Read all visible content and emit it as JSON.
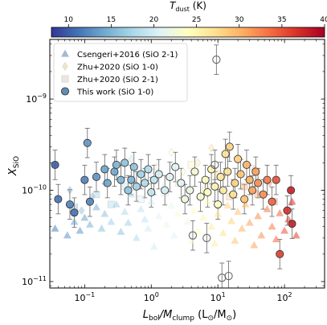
{
  "chart_data": {
    "type": "scatter",
    "xlabel_main": "L",
    "xlabel_sub1": "bol",
    "xlabel_mid": "/M",
    "xlabel_sub2": "clump",
    "xlabel_units": " (L",
    "xlabel_units_sub1": "⊙",
    "xlabel_units_mid": "/M",
    "xlabel_units_sub2": "⊙",
    "xlabel_units_end": ")",
    "ylabel_main": "X",
    "ylabel_sub": "SiO",
    "xscale": "log",
    "yscale": "log",
    "xlim": [
      0.03,
      400
    ],
    "ylim": [
      8.5e-12,
      4.5e-09
    ],
    "x_ticks": [
      {
        "v": 0.1,
        "m": "10",
        "e": "−1"
      },
      {
        "v": 1,
        "m": "10",
        "e": "0"
      },
      {
        "v": 10,
        "m": "10",
        "e": "1"
      },
      {
        "v": 100,
        "m": "10",
        "e": "2"
      }
    ],
    "y_ticks": [
      {
        "v": 1e-11,
        "m": "10",
        "e": "−11"
      },
      {
        "v": 1e-10,
        "m": "10",
        "e": "−10"
      },
      {
        "v": 1e-09,
        "m": "10",
        "e": "−9"
      }
    ],
    "colorbar": {
      "label_main": "T",
      "label_sub": "dust",
      "label_units": " (K)",
      "range": [
        8,
        40
      ],
      "ticks": [
        {
          "v": 10,
          "label": "10"
        },
        {
          "v": 15,
          "label": "15"
        },
        {
          "v": 20,
          "label": "20"
        },
        {
          "v": 25,
          "label": "25"
        },
        {
          "v": 30,
          "label": "30"
        },
        {
          "v": 35,
          "label": "35"
        },
        {
          "v": 40,
          "label": "40"
        }
      ],
      "colormap": "RdYlBu_r",
      "colors": [
        "#313695",
        "#4575b4",
        "#74add1",
        "#abd9e9",
        "#e0f3f8",
        "#ffffbf",
        "#fee090",
        "#fdae61",
        "#f46d43",
        "#d73027",
        "#a50026"
      ]
    },
    "legend": {
      "placement": "top-left",
      "entries": [
        {
          "label": "Csengeri+2016 (SiO 2-1)",
          "marker": "triangle"
        },
        {
          "label": "Zhu+2020 (SiO 1-0)",
          "marker": "diamond"
        },
        {
          "label": "Zhu+2020 (SiO 2-1)",
          "marker": "square"
        },
        {
          "label": "This work (SiO 1-0)",
          "marker": "circle"
        }
      ]
    },
    "series": [
      {
        "name": "Csengeri+2016 (SiO 2-1)",
        "marker": "triangle",
        "points": [
          [
            0.036,
            3.8e-11,
            12
          ],
          [
            0.055,
            3.2e-11,
            13
          ],
          [
            0.07,
            4.5e-11,
            14
          ],
          [
            0.085,
            3.6e-11,
            13
          ],
          [
            0.1,
            5e-11,
            14
          ],
          [
            0.12,
            4.2e-11,
            15
          ],
          [
            0.15,
            6.5e-11,
            15
          ],
          [
            0.18,
            3.8e-11,
            16
          ],
          [
            0.2,
            5.5e-11,
            16
          ],
          [
            0.25,
            4.5e-11,
            17
          ],
          [
            0.3,
            7e-11,
            17
          ],
          [
            0.35,
            3.5e-11,
            16
          ],
          [
            0.4,
            5.8e-11,
            18
          ],
          [
            0.45,
            4.4e-11,
            17
          ],
          [
            0.5,
            9e-11,
            18
          ],
          [
            0.6,
            3e-11,
            18
          ],
          [
            0.7,
            6.2e-11,
            19
          ],
          [
            0.8,
            4.8e-11,
            19
          ],
          [
            0.9,
            3.8e-11,
            20
          ],
          [
            1.0,
            7.5e-11,
            20
          ],
          [
            1.1,
            2.4e-11,
            20
          ],
          [
            1.3,
            5.2e-11,
            21
          ],
          [
            1.5,
            1.1e-10,
            21
          ],
          [
            1.7,
            4.2e-11,
            22
          ],
          [
            2.0,
            6.8e-11,
            22
          ],
          [
            2.2,
            3.2e-11,
            21
          ],
          [
            2.5,
            5.5e-11,
            23
          ],
          [
            3.0,
            8.5e-11,
            23
          ],
          [
            3.5,
            4.5e-11,
            22
          ],
          [
            4.0,
            2.8e-11,
            23
          ],
          [
            4.5,
            6e-11,
            24
          ],
          [
            5.0,
            3.6e-11,
            24
          ],
          [
            6.0,
            5e-11,
            25
          ],
          [
            7.0,
            7.5e-11,
            25
          ],
          [
            8.0,
            4e-11,
            26
          ],
          [
            9.0,
            2.6e-11,
            26
          ],
          [
            10.0,
            5.5e-11,
            27
          ],
          [
            12.0,
            3.4e-11,
            27
          ],
          [
            14.0,
            6.8e-11,
            28
          ],
          [
            16.0,
            4.6e-11,
            28
          ],
          [
            18.0,
            2.8e-11,
            29
          ],
          [
            20.0,
            5.8e-11,
            29
          ],
          [
            23.0,
            3.8e-11,
            30
          ],
          [
            26.0,
            7e-11,
            30
          ],
          [
            30.0,
            4.4e-11,
            31
          ],
          [
            35.0,
            2.5e-11,
            31
          ],
          [
            40.0,
            5.2e-11,
            32
          ],
          [
            45.0,
            3.2e-11,
            32
          ],
          [
            55.0,
            6.2e-11,
            33
          ],
          [
            65.0,
            4e-11,
            33
          ],
          [
            75.0,
            2.9e-11,
            34
          ],
          [
            85.0,
            5.6e-11,
            34
          ],
          [
            100.0,
            3.6e-11,
            35
          ],
          [
            115.0,
            4.8e-11,
            36
          ],
          [
            130.0,
            7.5e-11,
            37
          ],
          [
            150.0,
            3.2e-11,
            36
          ]
        ]
      },
      {
        "name": "Zhu+2020 (SiO 1-0)",
        "marker": "diamond",
        "points": [
          [
            0.06,
            1e-10,
            14
          ],
          [
            0.09,
            6e-11,
            15
          ],
          [
            0.13,
            8.5e-11,
            15
          ],
          [
            0.2,
            1.2e-10,
            17
          ],
          [
            0.3,
            1.5e-10,
            18
          ],
          [
            0.5,
            2.2e-10,
            19
          ],
          [
            0.8,
            1.3e-10,
            21
          ],
          [
            1.2,
            1.8e-10,
            22
          ],
          [
            2.0,
            2.6e-10,
            23
          ],
          [
            3.0,
            1.6e-10,
            24
          ],
          [
            5.0,
            2e-10,
            26
          ],
          [
            8.0,
            2.9e-10,
            27
          ],
          [
            12.0,
            1.4e-10,
            29
          ],
          [
            20.0,
            2.3e-10,
            30
          ],
          [
            35.0,
            1.7e-10,
            32
          ],
          [
            60.0,
            1.2e-10,
            33
          ]
        ]
      },
      {
        "name": "Zhu+2020 (SiO 2-1)",
        "marker": "square",
        "points": [
          [
            0.07,
            6.5e-11,
            14
          ],
          [
            0.15,
            9e-11,
            16
          ],
          [
            0.25,
            7e-11,
            17
          ],
          [
            0.4,
            1.1e-10,
            18
          ],
          [
            0.7,
            8e-11,
            20
          ],
          [
            1.0,
            1.4e-10,
            21
          ],
          [
            1.6,
            9.5e-11,
            22
          ],
          [
            2.6,
            1.2e-10,
            23
          ],
          [
            4.0,
            1.9e-10,
            25
          ],
          [
            6.5,
            1e-10,
            26
          ],
          [
            10.0,
            1.5e-10,
            28
          ],
          [
            15.0,
            8.5e-11,
            29
          ],
          [
            25.0,
            1.1e-10,
            31
          ],
          [
            40.0,
            9e-11,
            32
          ],
          [
            70.0,
            7.5e-11,
            34
          ]
        ]
      },
      {
        "name": "This work (SiO 1-0)",
        "marker": "circle",
        "points": [
          [
            0.036,
            1.9e-10,
            10,
            0
          ],
          [
            0.04,
            8e-11,
            11,
            0
          ],
          [
            0.06,
            7e-11,
            12,
            0
          ],
          [
            0.07,
            5.7e-11,
            11,
            0
          ],
          [
            0.1,
            1.3e-10,
            12,
            0
          ],
          [
            0.11,
            3.3e-10,
            13,
            0
          ],
          [
            0.12,
            7.5e-11,
            12,
            0
          ],
          [
            0.15,
            1.4e-10,
            13,
            0
          ],
          [
            0.2,
            1.7e-10,
            14,
            0
          ],
          [
            0.22,
            1.2e-10,
            14,
            0
          ],
          [
            0.28,
            1.6e-10,
            14,
            0
          ],
          [
            0.3,
            1.9e-10,
            15,
            0
          ],
          [
            0.35,
            1.3e-10,
            15,
            0
          ],
          [
            0.4,
            2e-10,
            16,
            0
          ],
          [
            0.45,
            1e-10,
            16,
            0
          ],
          [
            0.5,
            1.3e-10,
            15,
            0
          ],
          [
            0.55,
            1.8e-10,
            16,
            0
          ],
          [
            0.6,
            1.1e-10,
            17,
            0
          ],
          [
            0.7,
            1.5e-10,
            17,
            0
          ],
          [
            0.8,
            1.2e-10,
            18,
            0
          ],
          [
            0.9,
            1.7e-10,
            18,
            0
          ],
          [
            1.0,
            9.5e-11,
            19,
            0
          ],
          [
            1.1,
            1.3e-10,
            19,
            0
          ],
          [
            1.3,
            1.5e-10,
            20,
            0
          ],
          [
            1.6,
            1e-10,
            20,
            0
          ],
          [
            1.9,
            1.4e-10,
            21,
            0
          ],
          [
            2.3,
            1.8e-10,
            21,
            0
          ],
          [
            2.8,
            1.2e-10,
            21,
            0
          ],
          [
            3.2,
            8e-11,
            22,
            0
          ],
          [
            3.8,
            1e-10,
            22,
            0
          ],
          [
            4.5,
            1.6e-10,
            23,
            0
          ],
          [
            5.5,
            8.5e-11,
            23,
            0
          ],
          [
            6.5,
            1.3e-10,
            24,
            0
          ],
          [
            7.0,
            9.5e-11,
            24,
            0
          ],
          [
            8.0,
            1.7e-10,
            25,
            0
          ],
          [
            9.0,
            1.1e-10,
            25,
            0
          ],
          [
            9.5,
            2.7e-09,
            22,
            1
          ],
          [
            10.0,
            7e-11,
            24,
            0
          ],
          [
            11.0,
            1.4e-10,
            26,
            0
          ],
          [
            12.0,
            1e-10,
            26,
            0
          ],
          [
            13.0,
            2.5e-10,
            27,
            0
          ],
          [
            14.0,
            1.6e-10,
            27,
            0
          ],
          [
            15.0,
            3e-10,
            28,
            0
          ],
          [
            17.0,
            9e-11,
            27,
            0
          ],
          [
            18.0,
            1.2e-10,
            28,
            0
          ],
          [
            20.0,
            2.2e-10,
            28,
            0
          ],
          [
            22.0,
            1.5e-10,
            29,
            0
          ],
          [
            25.0,
            8e-11,
            29,
            0
          ],
          [
            27.0,
            1.9e-10,
            30,
            0
          ],
          [
            30.0,
            1.3e-10,
            30,
            0
          ],
          [
            33.0,
            1e-10,
            31,
            0
          ],
          [
            37.0,
            1.6e-10,
            31,
            0
          ],
          [
            40.0,
            1.2e-10,
            32,
            0
          ],
          [
            48.0,
            9e-11,
            32,
            0
          ],
          [
            55.0,
            1.3e-10,
            33,
            0
          ],
          [
            65.0,
            7.5e-11,
            34,
            0
          ],
          [
            75.0,
            1.3e-10,
            35,
            0
          ],
          [
            85.0,
            2e-11,
            36,
            0
          ],
          [
            110.0,
            6e-11,
            37,
            0
          ],
          [
            125.0,
            1e-10,
            38,
            0
          ],
          [
            130.0,
            4.3e-11,
            38,
            0
          ],
          [
            6.8,
            3e-11,
            21,
            1
          ],
          [
            11.5,
            1.1e-11,
            22,
            1
          ],
          [
            14.5,
            1.15e-11,
            23,
            1
          ],
          [
            4.2,
            3.2e-11,
            20,
            1
          ],
          [
            9.0,
            1.9e-10,
            22,
            1
          ]
        ]
      }
    ]
  }
}
